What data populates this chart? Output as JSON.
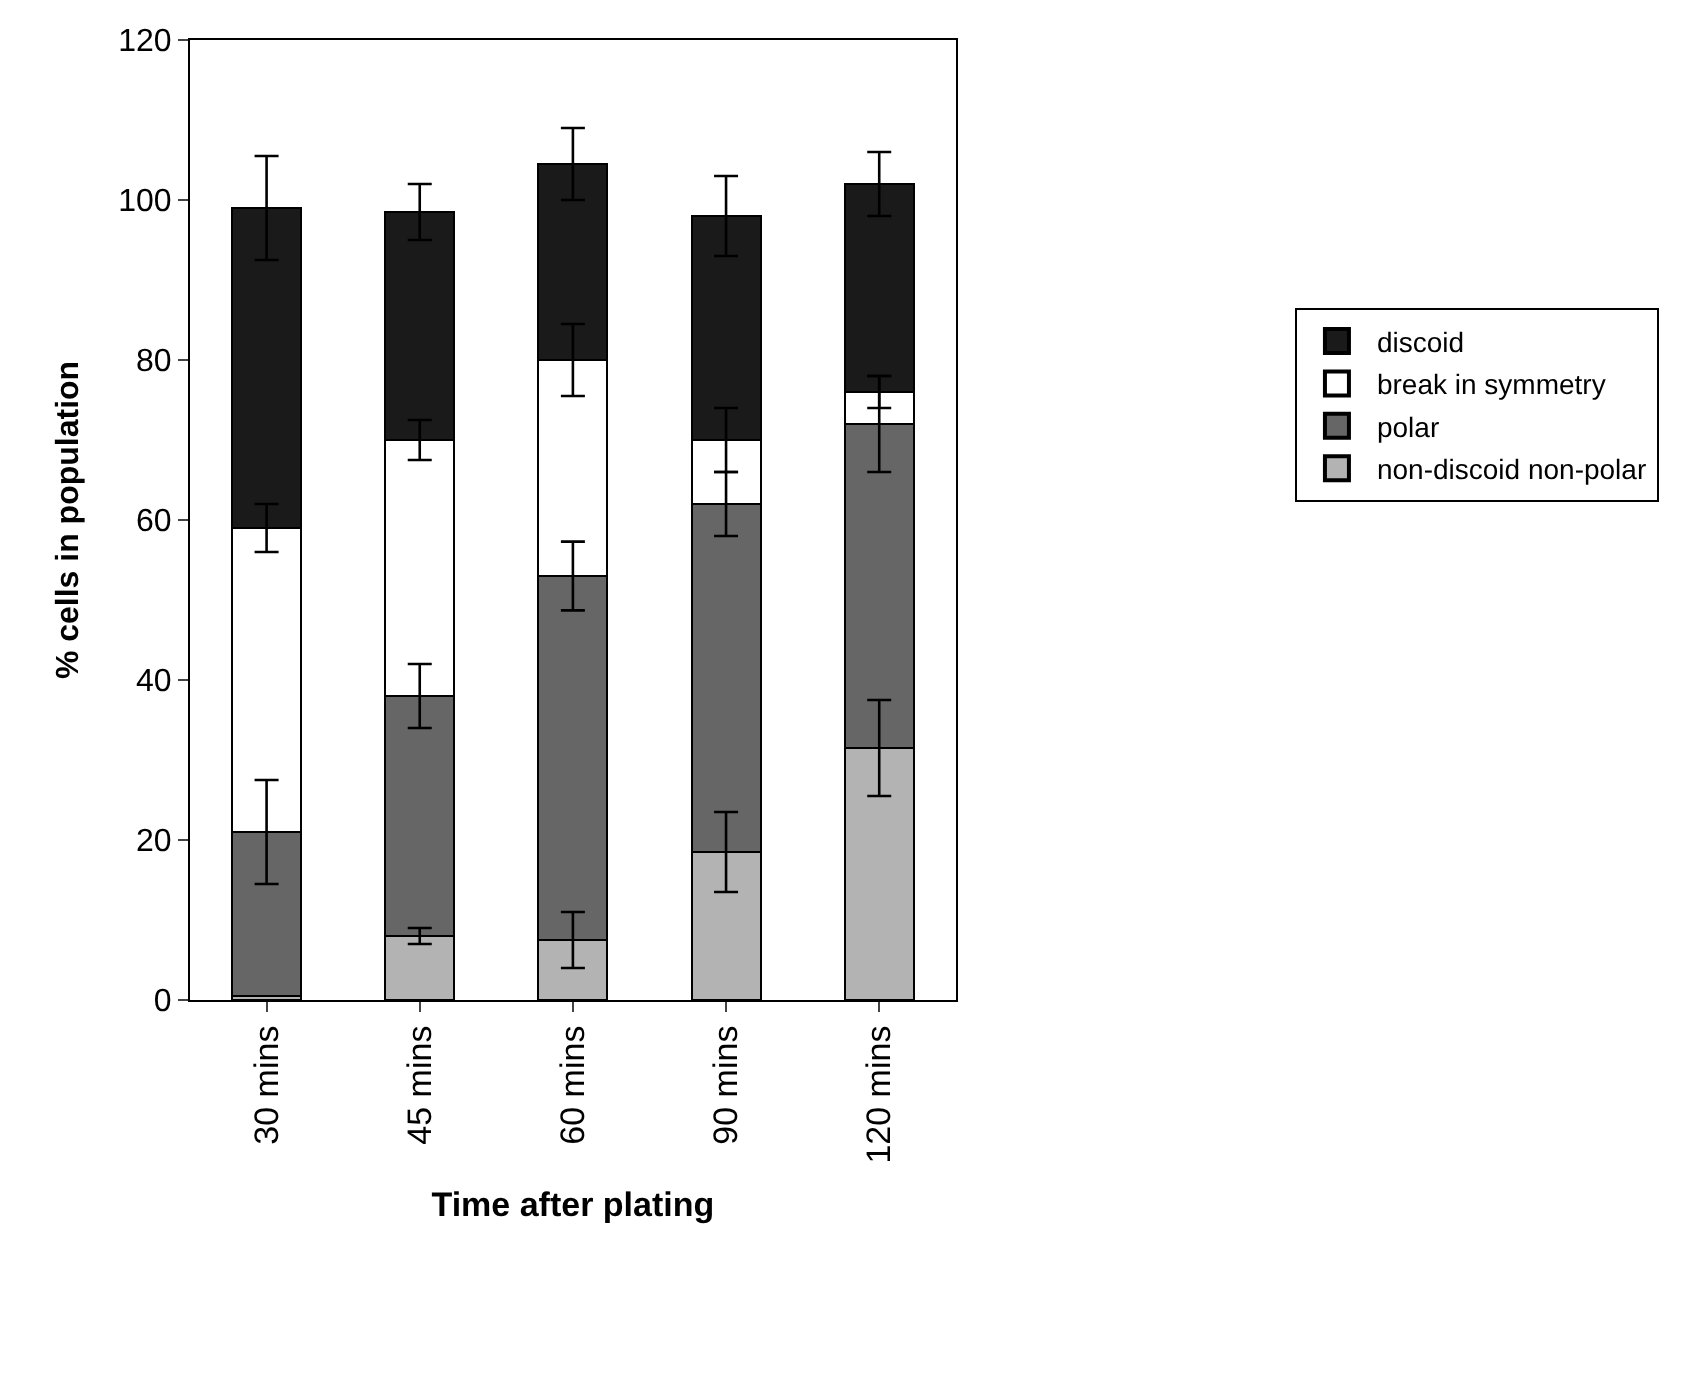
{
  "chart_data": {
    "type": "bar",
    "stacked": true,
    "xlabel": "Time after plating",
    "ylabel": "% cells in population",
    "categories": [
      "30 mins",
      "45 mins",
      "60 mins",
      "90 mins",
      "120 mins"
    ],
    "series": [
      {
        "name": "non-discoid non-polar",
        "color": "#b3b3b3",
        "values": [
          0.5,
          8,
          7.5,
          18.5,
          31.5
        ],
        "errors": [
          null,
          1,
          3.5,
          5,
          6
        ]
      },
      {
        "name": "polar",
        "color": "#666666",
        "values": [
          20.5,
          30,
          45.5,
          43.5,
          40.5
        ],
        "errors": [
          6.5,
          4,
          4.3,
          4,
          6
        ]
      },
      {
        "name": "break in symmetry",
        "color": "#ffffff",
        "values": [
          38,
          32,
          27,
          8,
          4
        ],
        "errors": [
          3,
          2.5,
          4.5,
          4,
          2
        ]
      },
      {
        "name": "discoid",
        "color": "#1a1a1a",
        "values": [
          40,
          28.5,
          24.5,
          28,
          26
        ],
        "errors": [
          6.5,
          3.5,
          4.5,
          5,
          4
        ]
      }
    ],
    "ylim": [
      0,
      120
    ],
    "yticks": [
      0,
      20,
      40,
      60,
      80,
      100,
      120
    ],
    "legend": "right"
  }
}
